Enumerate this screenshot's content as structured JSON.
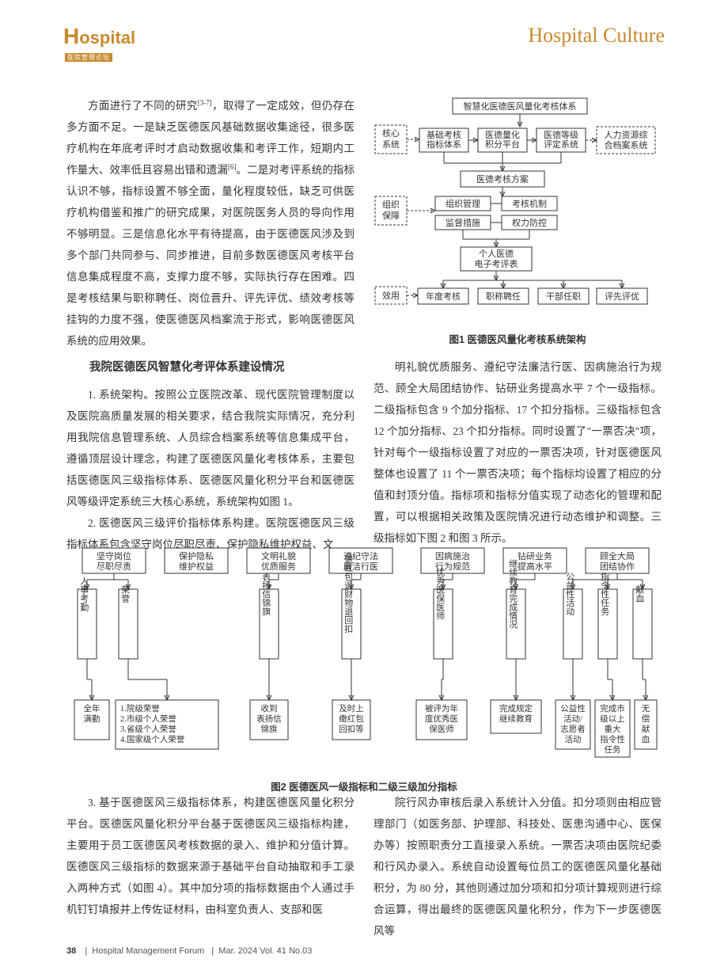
{
  "header": {
    "logo_main": "ospital",
    "logo_h": "H",
    "logo_sub": "医院管理论坛",
    "title": "Hospital Culture"
  },
  "left_col": {
    "p1a": "方面进行了不同的研究",
    "p1_ref": "[3-7]",
    "p1b": "，取得了一定成效，但仍存在多方面不足。一是缺乏医德医风基础数据收集途径，很多医疗机构在年底考评时才启动数据收集和考评工作，短期内工作量大、效率低且容易出错和遗漏",
    "p1_ref2": "[6]",
    "p1c": "。二是对考评系统的指标认识不够，指标设置不够全面，量化程度较低，缺乏可供医疗机构借鉴和推广的研究成果，对医院医务人员的导向作用不够明显。三是信息化水平有待提高，由于医德医风涉及到多个部门共同参与、同步推进，目前多数医德医风考核平台信息集成程度不高，支撑力度不够，实际执行存在困难。四是考核结果与职称聘任、岗位晋升、评先评优、绩效考核等挂钩的力度不强，使医德医风档案流于形式，影响医德医风系统的应用效果。",
    "h3": "我院医德医风智慧化考评体系建设情况",
    "p2": "1. 系统架构。按照公立医院改革、现代医院管理制度以及医院高质量发展的相关要求，结合我院实际情况，充分利用我院信息管理系统、人员综合档案系统等信息集成平台，遵循顶层设计理念，构建了医德医风量化考核体系，主要包括医德医风三级指标体系、医德医风量化积分平台和医德医风等级评定系统三大核心系统，系统架构如图 1。",
    "p3": "2. 医德医风三级评价指标体系构建。医院医德医风三级指标体系包含坚守岗位尽职尽责、保护隐私维护权益、文"
  },
  "right_col": {
    "fig1_caption": "图1 医德医风量化考核系统架构",
    "p1": "明礼貌优质服务、遵纪守法廉洁行医、因病施治行为规范、顾全大局团结协作、钻研业务提高水平 7 个一级指标。二级指标包含 9 个加分指标、17 个扣分指标。三级指标包含 12 个加分指标、23 个扣分指标。同时设置了\"一票否决\"项，针对每个一级指标设置了对应的一票否决项，针对医德医风整体也设置了 11 个一票否决项；每个指标均设置了相应的分值和封顶分值。指标项和指标分值实现了动态化的管理和配置，可以根据相关政策及医院情况进行动态维护和调整。三级指标如下图 2 和图 3 所示。"
  },
  "fig1": {
    "top": "智慧化医德医风量化考核体系",
    "core_label": "核心\n系统",
    "core": [
      "基础考核\n指标体系",
      "医德量化\n积分平台",
      "医德等级\n评定系统",
      "人力资源综\n合档案系统"
    ],
    "plan": "医德考核方案",
    "org_label": "组织\n保障",
    "org": [
      "组织管理",
      "考核机制",
      "监督措施",
      "权力防控"
    ],
    "personal": "个人医德\n电子考评表",
    "eff_label": "效用",
    "eff": [
      "年度考核",
      "职称聘任",
      "干部任职",
      "评先评优"
    ]
  },
  "fig2": {
    "caption": "图2 医德医风一级指标和二级三级加分指标",
    "level1": [
      "坚守岗位\n尽职尽责",
      "保护隐私\n维护权益",
      "文明礼貌\n优质服务",
      "遵纪守法\n廉洁行医",
      "因病施治\n行为规范",
      "钻研业务\n提高水平",
      "顾全大局\n团结协作"
    ],
    "level2": [
      "人事考勤",
      "荣誉",
      "表扬信锦旗",
      "退红包退财物退回扣",
      "优秀医保医师",
      "继续教育完成情况",
      "公益性活动",
      "指令性任务",
      "献血"
    ],
    "level3": [
      "全年\n满勤",
      "1.院级荣誉\n2.市级个人荣誉\n3.省级个人荣誉\n4.国家级个人荣誉",
      "收到\n表扬信\n锦旗",
      "及时上\n缴红包\n回扣等",
      "被评为年\n度优秀医\n保医师",
      "完成规定\n继续教育",
      "公益性\n活动/\n志愿者\n活动",
      "完成市\n级以上\n重大\n指令性\n任务",
      "无\n偿\n献\n血"
    ]
  },
  "lower": {
    "left": "3. 基于医德医风三级指标体系，构建医德医风量化积分平台。医德医风量化积分平台基于医德医风三级指标构建，主要用于员工医德医风考核数据的录入、维护和分值计算。医德医风三级指标的数据来源于基础平台自动抽取和手工录入两种方式（如图 4）。其中加分项的指标数据由个人通过手机钉钉填报并上传佐证材料，由科室负责人、支部和医",
    "right": "院行风办审核后录入系统计入分值。扣分项则由相应管理部门（如医务部、护理部、科技处、医患沟通中心、医保办等）按照职责分工直接录入系统。一票否决项由医院纪委和行风办录入。系统自动设置每位员工的医德医风量化基础积分，为 80 分，其他则通过加分项和扣分项计算规则进行综合运算，得出最终的医德医风量化积分，作为下一步医德医风等"
  },
  "footer": {
    "page": "38",
    "journal": "Hospital Management Forum",
    "issue": "Mar. 2024 Vol. 41 No.03"
  }
}
